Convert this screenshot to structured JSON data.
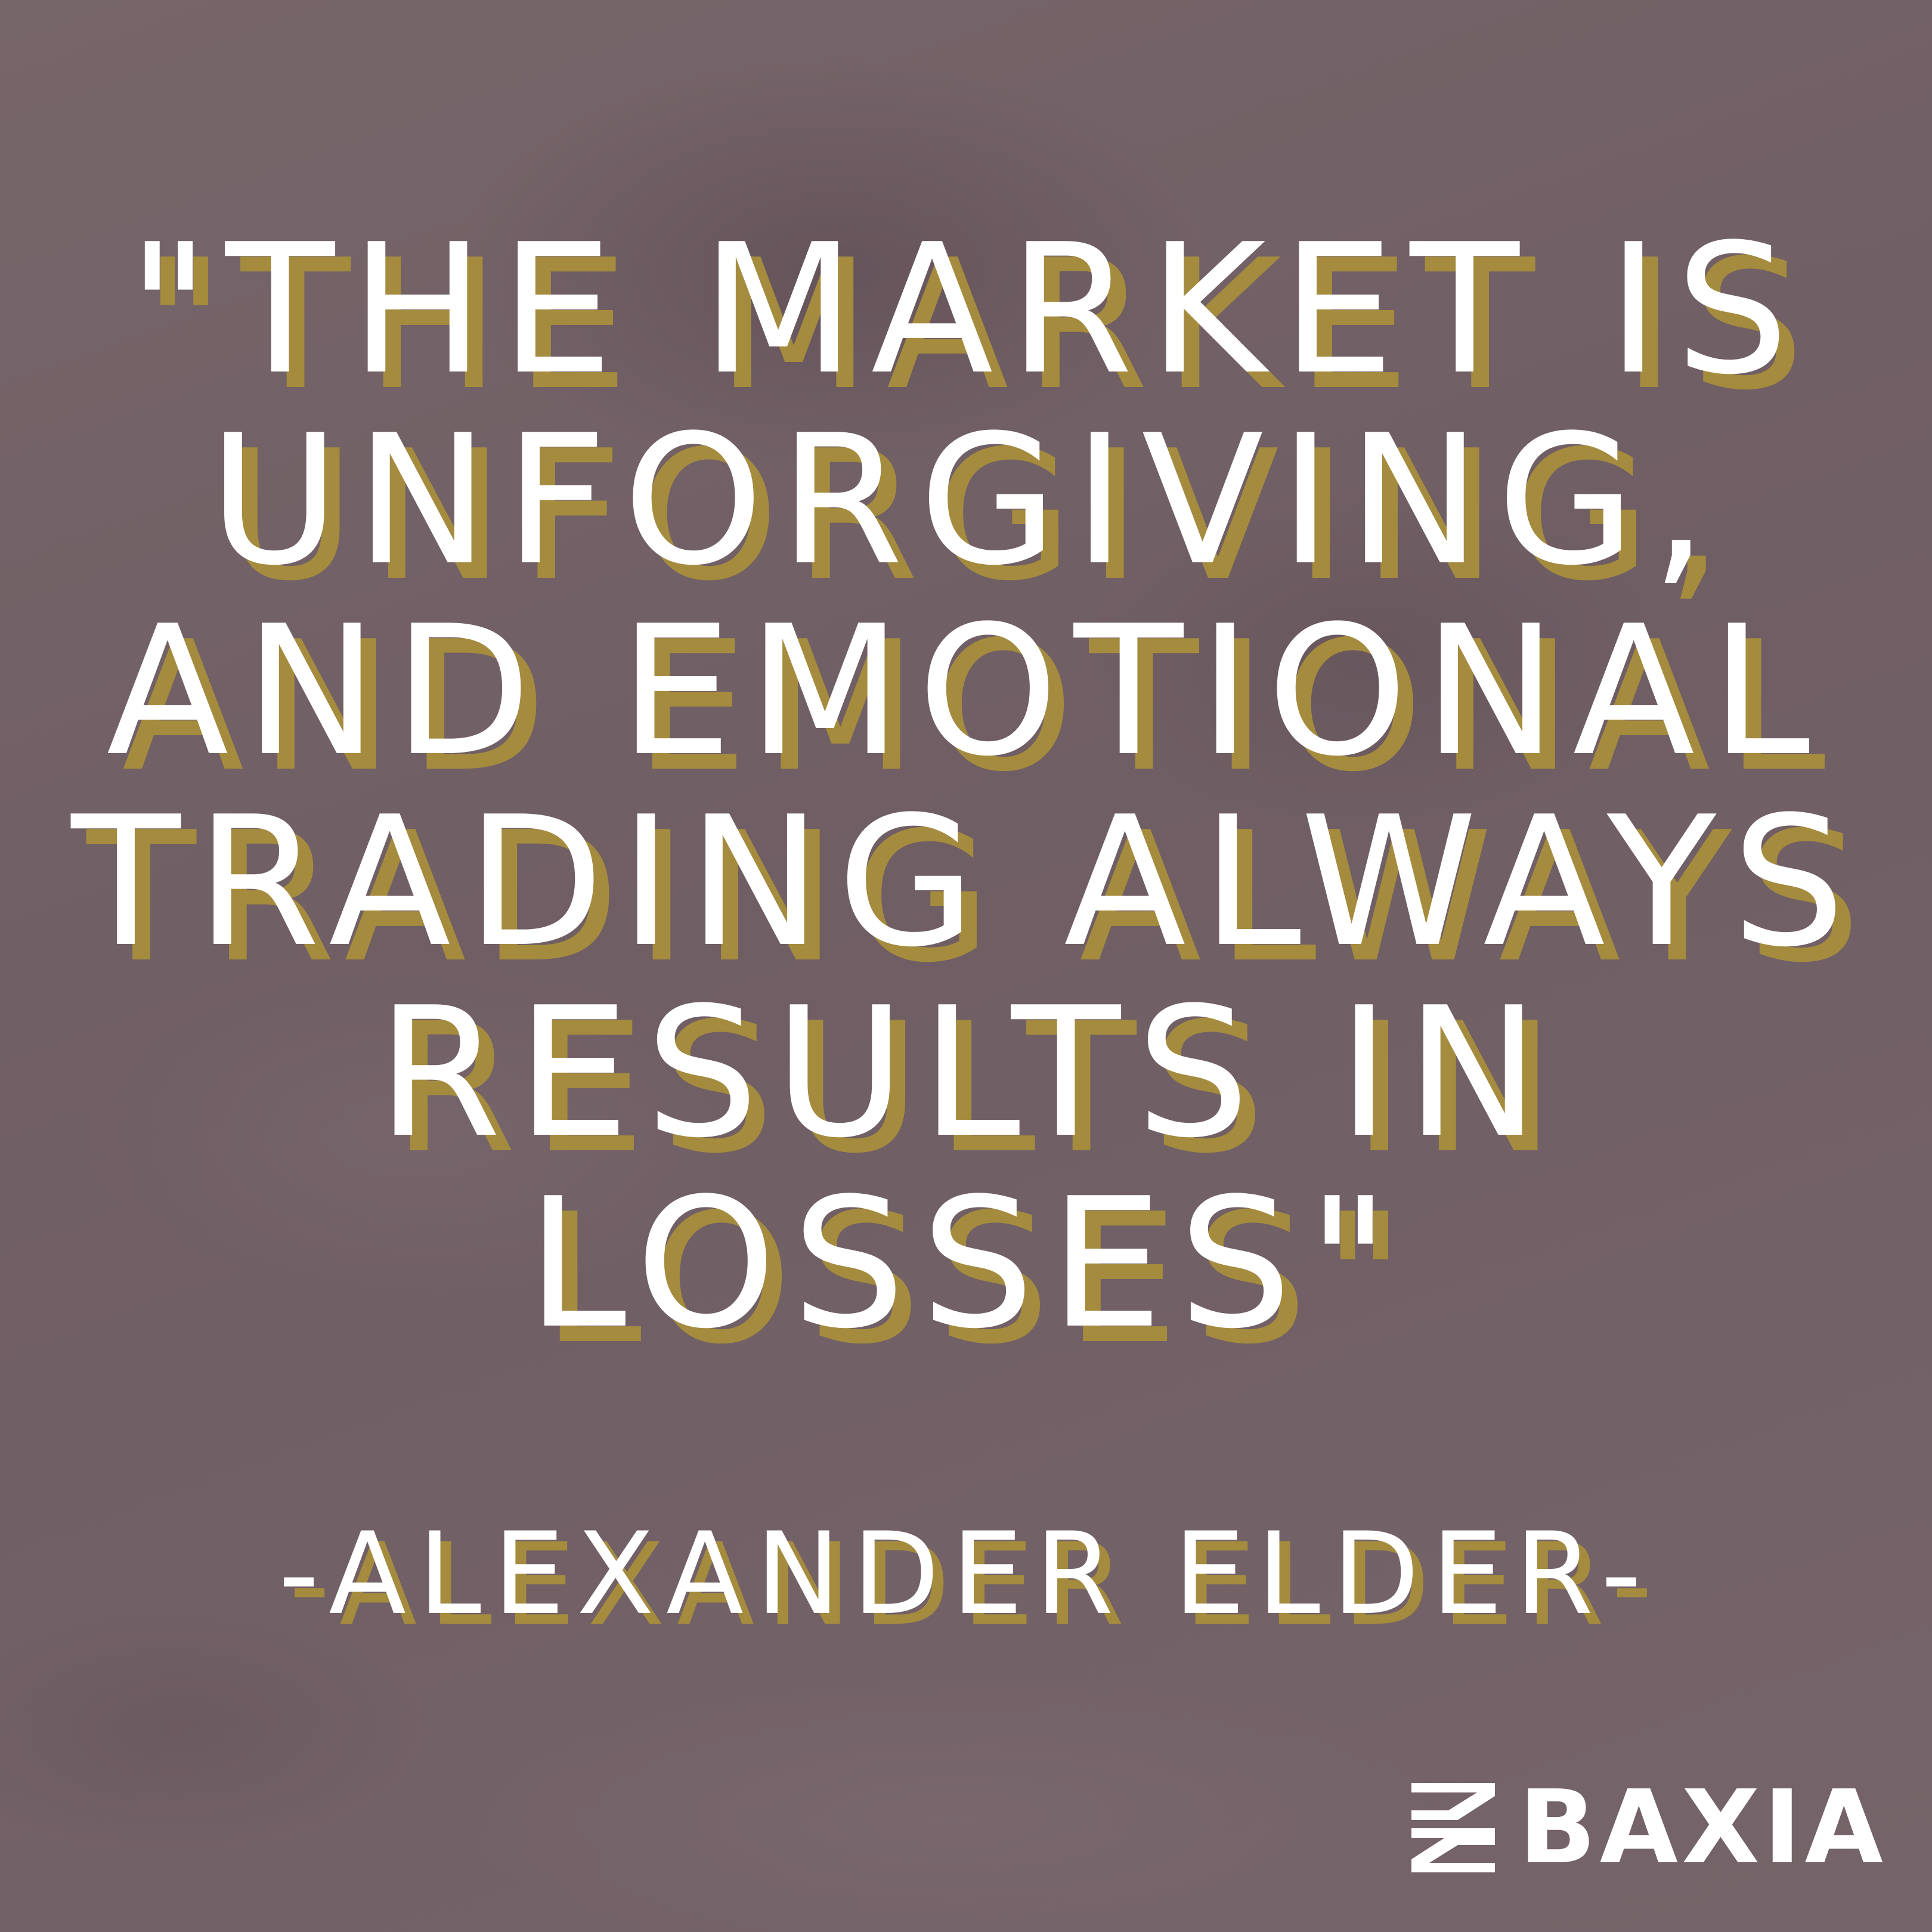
{
  "quote": {
    "lines": [
      "\"THE MARKET IS",
      "UNFORGIVING,",
      "AND EMOTIONAL",
      "TRADING ALWAYS",
      "RESULTS IN",
      "LOSSES\""
    ]
  },
  "author": "-ALEXANDER ELDER-",
  "brand": {
    "name": "BAXIA",
    "icon": "baxia-logo-icon"
  },
  "colors": {
    "background": "#726268",
    "text": "#ffffff",
    "shadow": "#a58b3e"
  }
}
